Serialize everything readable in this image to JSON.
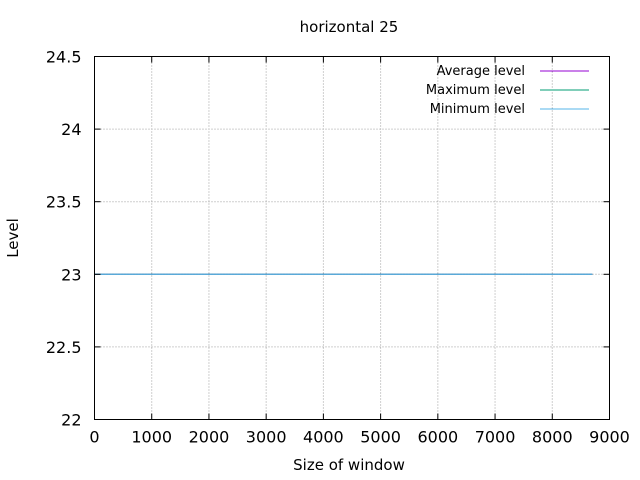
{
  "chart_data": {
    "type": "line",
    "title": "horizontal 25",
    "xlabel": "Size of window",
    "ylabel": "Level",
    "xlim": [
      0,
      9000
    ],
    "ylim": [
      22,
      24.5
    ],
    "xticks": [
      0,
      1000,
      2000,
      3000,
      4000,
      5000,
      6000,
      7000,
      8000,
      9000
    ],
    "yticks": [
      22,
      22.5,
      23,
      23.5,
      24,
      24.5
    ],
    "xtick_labels": [
      "0",
      "1000",
      "2000",
      "3000",
      "4000",
      "5000",
      "6000",
      "7000",
      "8000",
      "9000"
    ],
    "ytick_labels": [
      "22",
      "22.5",
      "23",
      "23.5",
      "24",
      "24.5"
    ],
    "grid": true,
    "legend_position": "top-right",
    "series": [
      {
        "name": "Average level",
        "color": "#9400d3",
        "x": [
          0,
          8700
        ],
        "y": [
          23,
          23
        ]
      },
      {
        "name": "Maximum level",
        "color": "#009e73",
        "x": [
          0,
          8700
        ],
        "y": [
          23,
          23
        ]
      },
      {
        "name": "Minimum level",
        "color": "#56b4e9",
        "x": [
          0,
          8700
        ],
        "y": [
          23,
          23
        ]
      }
    ]
  }
}
